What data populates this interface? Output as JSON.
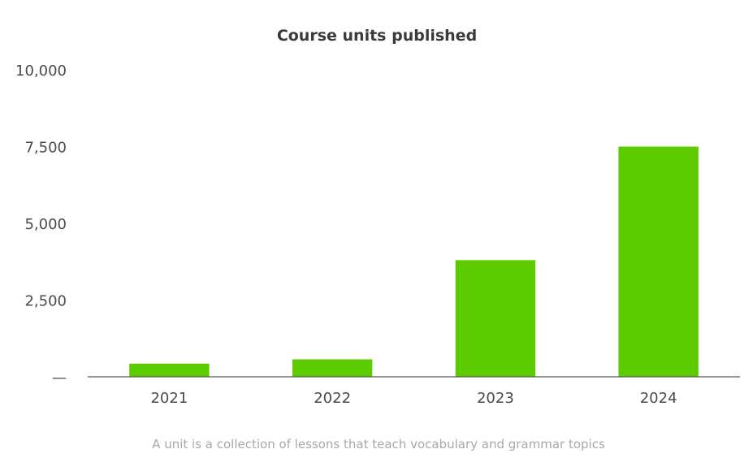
{
  "chart_data": {
    "type": "bar",
    "title": "Course units published",
    "xlabel": "",
    "ylabel": "",
    "categories": [
      "2021",
      "2022",
      "2023",
      "2024"
    ],
    "values": [
      430,
      570,
      3800,
      7500
    ],
    "ylim": [
      0,
      10000
    ],
    "yticks": [
      {
        "value": 0,
        "label": "—"
      },
      {
        "value": 2500,
        "label": "2,500"
      },
      {
        "value": 5000,
        "label": "5,000"
      },
      {
        "value": 7500,
        "label": "7,500"
      },
      {
        "value": 10000,
        "label": "10,000"
      }
    ],
    "grid": false,
    "bar_color": "#5ccc00",
    "footnote": "A unit is a collection of lessons that teach vocabulary and grammar topics"
  }
}
